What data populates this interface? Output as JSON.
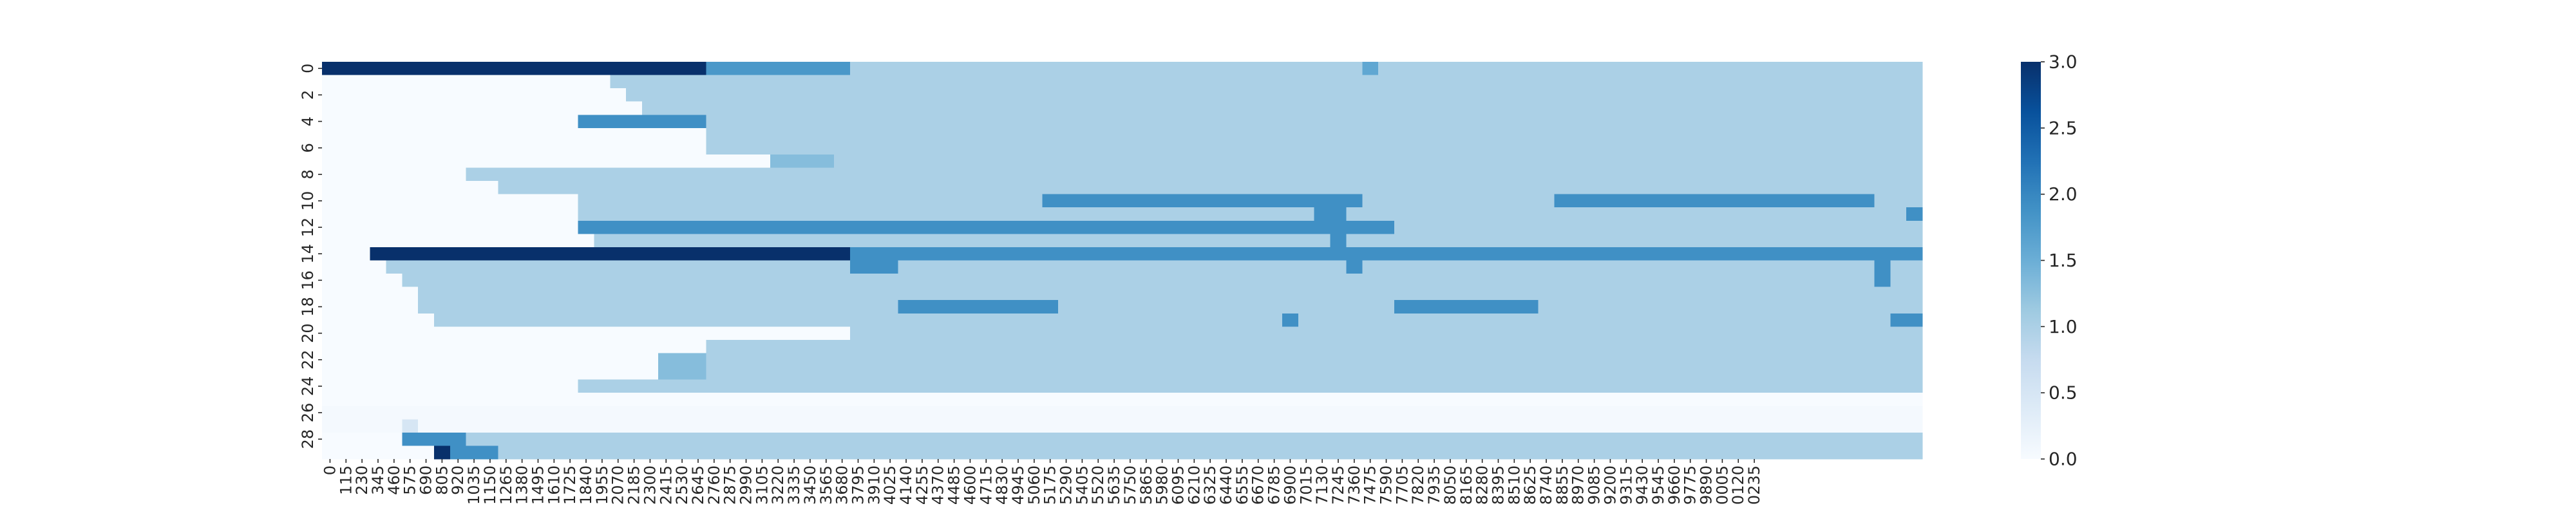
{
  "chart_data": {
    "type": "heatmap",
    "title": "",
    "xlabel": "",
    "ylabel": "",
    "n_rows": 30,
    "n_cols": 100,
    "x_tick_labels": [
      "0",
      "115",
      "230",
      "345",
      "460",
      "575",
      "690",
      "805",
      "920",
      "1035",
      "1150",
      "1265",
      "1380",
      "1495",
      "1610",
      "1725",
      "1840",
      "1955",
      "2070",
      "2185",
      "2300",
      "2415",
      "2530",
      "2645",
      "2760",
      "2875",
      "2990",
      "3105",
      "3220",
      "3335",
      "3450",
      "3565",
      "3680",
      "3795",
      "3910",
      "4025",
      "4140",
      "4255",
      "4370",
      "4485",
      "4600",
      "4715",
      "4830",
      "4945",
      "5060",
      "5175",
      "5290",
      "5405",
      "5520",
      "5635",
      "5750",
      "5865",
      "5980",
      "6095",
      "6210",
      "6325",
      "6440",
      "6555",
      "6670",
      "6785",
      "6900",
      "7015",
      "7130",
      "7245",
      "7360",
      "7475",
      "7590",
      "7705",
      "7820",
      "7935",
      "8050",
      "8165",
      "8280",
      "8395",
      "8510",
      "8625",
      "8740",
      "8855",
      "8970",
      "9085",
      "9200",
      "9315",
      "9430",
      "9545",
      "9660",
      "9775",
      "9890",
      "0005",
      "0120",
      "0235"
    ],
    "y_tick_labels": [
      "0",
      "2",
      "4",
      "6",
      "8",
      "10",
      "12",
      "14",
      "16",
      "18",
      "20",
      "22",
      "24",
      "26",
      "28"
    ],
    "colorbar": {
      "colormap": "Blues",
      "vmin": 0.0,
      "vmax": 3.0,
      "ticks": [
        "0.0",
        "0.5",
        "1.0",
        "1.5",
        "2.0",
        "2.5",
        "3.0"
      ],
      "stops": [
        "#f7fbff",
        "#deebf7",
        "#c6dbef",
        "#9ecae1",
        "#6baed6",
        "#4292c6",
        "#2171b5",
        "#08519c",
        "#08306b"
      ]
    },
    "background_value": 1.0,
    "cells": [
      {
        "row": 0,
        "cols": [
          0,
          24
        ],
        "value": 3.0
      },
      {
        "row": 0,
        "cols": [
          24,
          33
        ],
        "value": 1.8
      },
      {
        "row": 0,
        "cols": [
          65,
          66
        ],
        "value": 1.6
      },
      {
        "row": 1,
        "cols": [
          0,
          18
        ],
        "value": 0.0
      },
      {
        "row": 2,
        "cols": [
          0,
          19
        ],
        "value": 0.0
      },
      {
        "row": 3,
        "cols": [
          0,
          20
        ],
        "value": 0.0
      },
      {
        "row": 4,
        "cols": [
          0,
          16
        ],
        "value": 0.0
      },
      {
        "row": 4,
        "cols": [
          16,
          24
        ],
        "value": 1.9
      },
      {
        "row": 5,
        "cols": [
          0,
          24
        ],
        "value": 0.0
      },
      {
        "row": 6,
        "cols": [
          0,
          24
        ],
        "value": 0.0
      },
      {
        "row": 7,
        "cols": [
          0,
          28
        ],
        "value": 0.0
      },
      {
        "row": 7,
        "cols": [
          28,
          32
        ],
        "value": 1.3
      },
      {
        "row": 8,
        "cols": [
          0,
          9
        ],
        "value": 0.0
      },
      {
        "row": 9,
        "cols": [
          0,
          11
        ],
        "value": 0.0
      },
      {
        "row": 10,
        "cols": [
          0,
          16
        ],
        "value": 0.0
      },
      {
        "row": 10,
        "cols": [
          45,
          65
        ],
        "value": 1.9
      },
      {
        "row": 10,
        "cols": [
          77,
          97
        ],
        "value": 1.9
      },
      {
        "row": 11,
        "cols": [
          0,
          16
        ],
        "value": 0.0
      },
      {
        "row": 11,
        "cols": [
          62,
          64
        ],
        "value": 1.9
      },
      {
        "row": 11,
        "cols": [
          99,
          100
        ],
        "value": 1.9
      },
      {
        "row": 12,
        "cols": [
          0,
          16
        ],
        "value": 0.0
      },
      {
        "row": 12,
        "cols": [
          16,
          67
        ],
        "value": 1.9
      },
      {
        "row": 13,
        "cols": [
          0,
          17
        ],
        "value": 0.0
      },
      {
        "row": 13,
        "cols": [
          63,
          64
        ],
        "value": 1.9
      },
      {
        "row": 14,
        "cols": [
          0,
          3
        ],
        "value": 0.0
      },
      {
        "row": 14,
        "cols": [
          3,
          33
        ],
        "value": 3.0
      },
      {
        "row": 14,
        "cols": [
          33,
          100
        ],
        "value": 1.9
      },
      {
        "row": 15,
        "cols": [
          0,
          4
        ],
        "value": 0.0
      },
      {
        "row": 15,
        "cols": [
          33,
          36
        ],
        "value": 1.9
      },
      {
        "row": 15,
        "cols": [
          64,
          65
        ],
        "value": 1.9
      },
      {
        "row": 15,
        "cols": [
          97,
          98
        ],
        "value": 1.9
      },
      {
        "row": 16,
        "cols": [
          0,
          5
        ],
        "value": 0.0
      },
      {
        "row": 16,
        "cols": [
          97,
          98
        ],
        "value": 1.9
      },
      {
        "row": 17,
        "cols": [
          0,
          6
        ],
        "value": 0.0
      },
      {
        "row": 18,
        "cols": [
          0,
          6
        ],
        "value": 0.0
      },
      {
        "row": 18,
        "cols": [
          36,
          46
        ],
        "value": 1.9
      },
      {
        "row": 18,
        "cols": [
          67,
          76
        ],
        "value": 1.9
      },
      {
        "row": 19,
        "cols": [
          0,
          7
        ],
        "value": 0.0
      },
      {
        "row": 19,
        "cols": [
          60,
          61
        ],
        "value": 1.9
      },
      {
        "row": 19,
        "cols": [
          98,
          100
        ],
        "value": 1.9
      },
      {
        "row": 20,
        "cols": [
          0,
          33
        ],
        "value": 0.0
      },
      {
        "row": 21,
        "cols": [
          0,
          24
        ],
        "value": 0.0
      },
      {
        "row": 22,
        "cols": [
          0,
          21
        ],
        "value": 0.0
      },
      {
        "row": 22,
        "cols": [
          21,
          24
        ],
        "value": 1.3
      },
      {
        "row": 23,
        "cols": [
          0,
          21
        ],
        "value": 0.0
      },
      {
        "row": 23,
        "cols": [
          21,
          24
        ],
        "value": 1.3
      },
      {
        "row": 24,
        "cols": [
          0,
          16
        ],
        "value": 0.0
      },
      {
        "row": 25,
        "cols": [
          0,
          100
        ],
        "value": 0.0
      },
      {
        "row": 26,
        "cols": [
          0,
          100
        ],
        "value": 0.05
      },
      {
        "row": 27,
        "cols": [
          0,
          100
        ],
        "value": 0.05
      },
      {
        "row": 27,
        "cols": [
          5,
          6
        ],
        "value": 0.5
      },
      {
        "row": 28,
        "cols": [
          0,
          5
        ],
        "value": 0.0
      },
      {
        "row": 28,
        "cols": [
          5,
          9
        ],
        "value": 1.9
      },
      {
        "row": 29,
        "cols": [
          0,
          7
        ],
        "value": 0.0
      },
      {
        "row": 29,
        "cols": [
          7,
          8
        ],
        "value": 3.0
      },
      {
        "row": 29,
        "cols": [
          8,
          11
        ],
        "value": 1.9
      }
    ]
  }
}
